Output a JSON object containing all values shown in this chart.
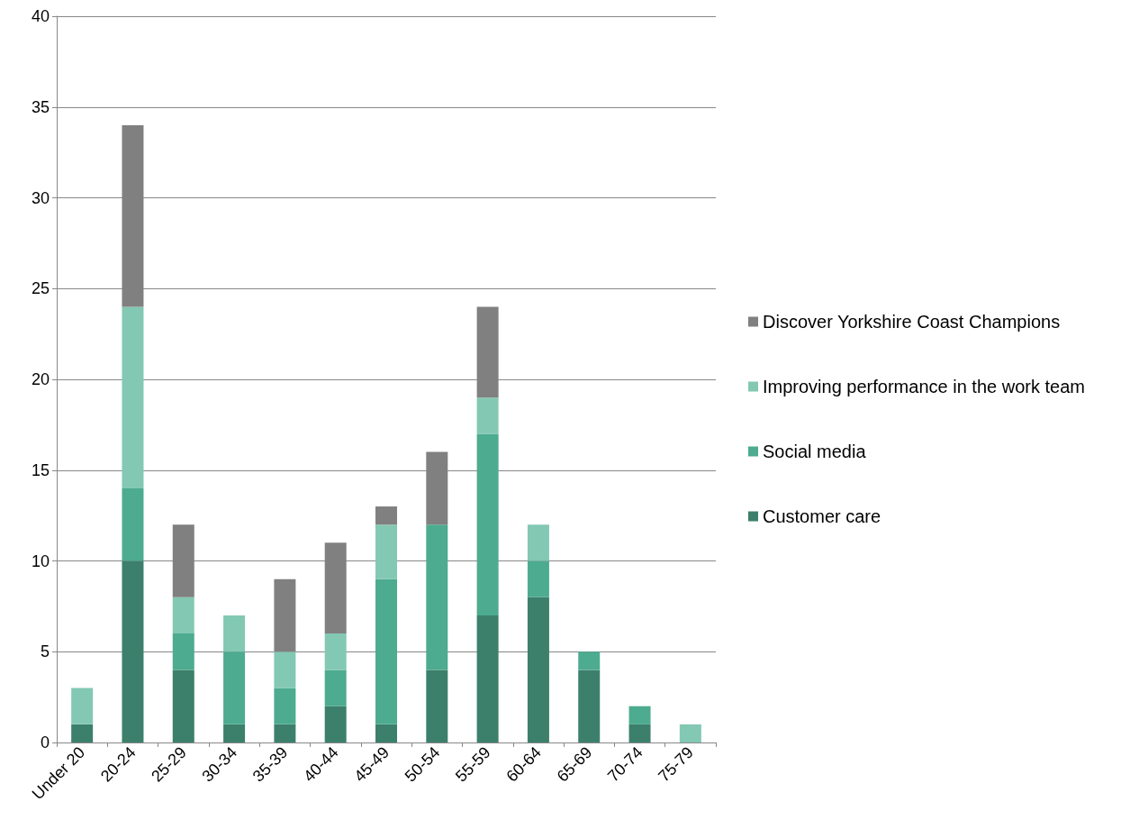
{
  "chart_data": {
    "type": "bar",
    "stacked": true,
    "categories": [
      "Under 20",
      "20-24",
      "25-29",
      "30-34",
      "35-39",
      "40-44",
      "45-49",
      "50-54",
      "55-59",
      "60-64",
      "65-69",
      "70-74",
      "75-79"
    ],
    "series": [
      {
        "name": "Customer care",
        "color": "#3c806c",
        "values": [
          1,
          10,
          4,
          1,
          1,
          2,
          1,
          4,
          7,
          8,
          4,
          1,
          0
        ]
      },
      {
        "name": "Social media",
        "color": "#4dab8f",
        "values": [
          0,
          4,
          2,
          4,
          2,
          2,
          8,
          8,
          10,
          2,
          1,
          1,
          0
        ]
      },
      {
        "name": "Improving performance in the work team",
        "color": "#83c8b3",
        "values": [
          2,
          10,
          2,
          2,
          2,
          2,
          3,
          0,
          2,
          2,
          0,
          0,
          1
        ]
      },
      {
        "name": "Discover Yorkshire Coast Champions",
        "color": "#808080",
        "values": [
          0,
          10,
          4,
          0,
          4,
          5,
          1,
          4,
          5,
          0,
          0,
          0,
          0
        ]
      }
    ],
    "ylim": [
      0,
      40
    ],
    "yticks": [
      0,
      5,
      10,
      15,
      20,
      25,
      30,
      35,
      40
    ],
    "grid": "y",
    "legend": "right"
  }
}
